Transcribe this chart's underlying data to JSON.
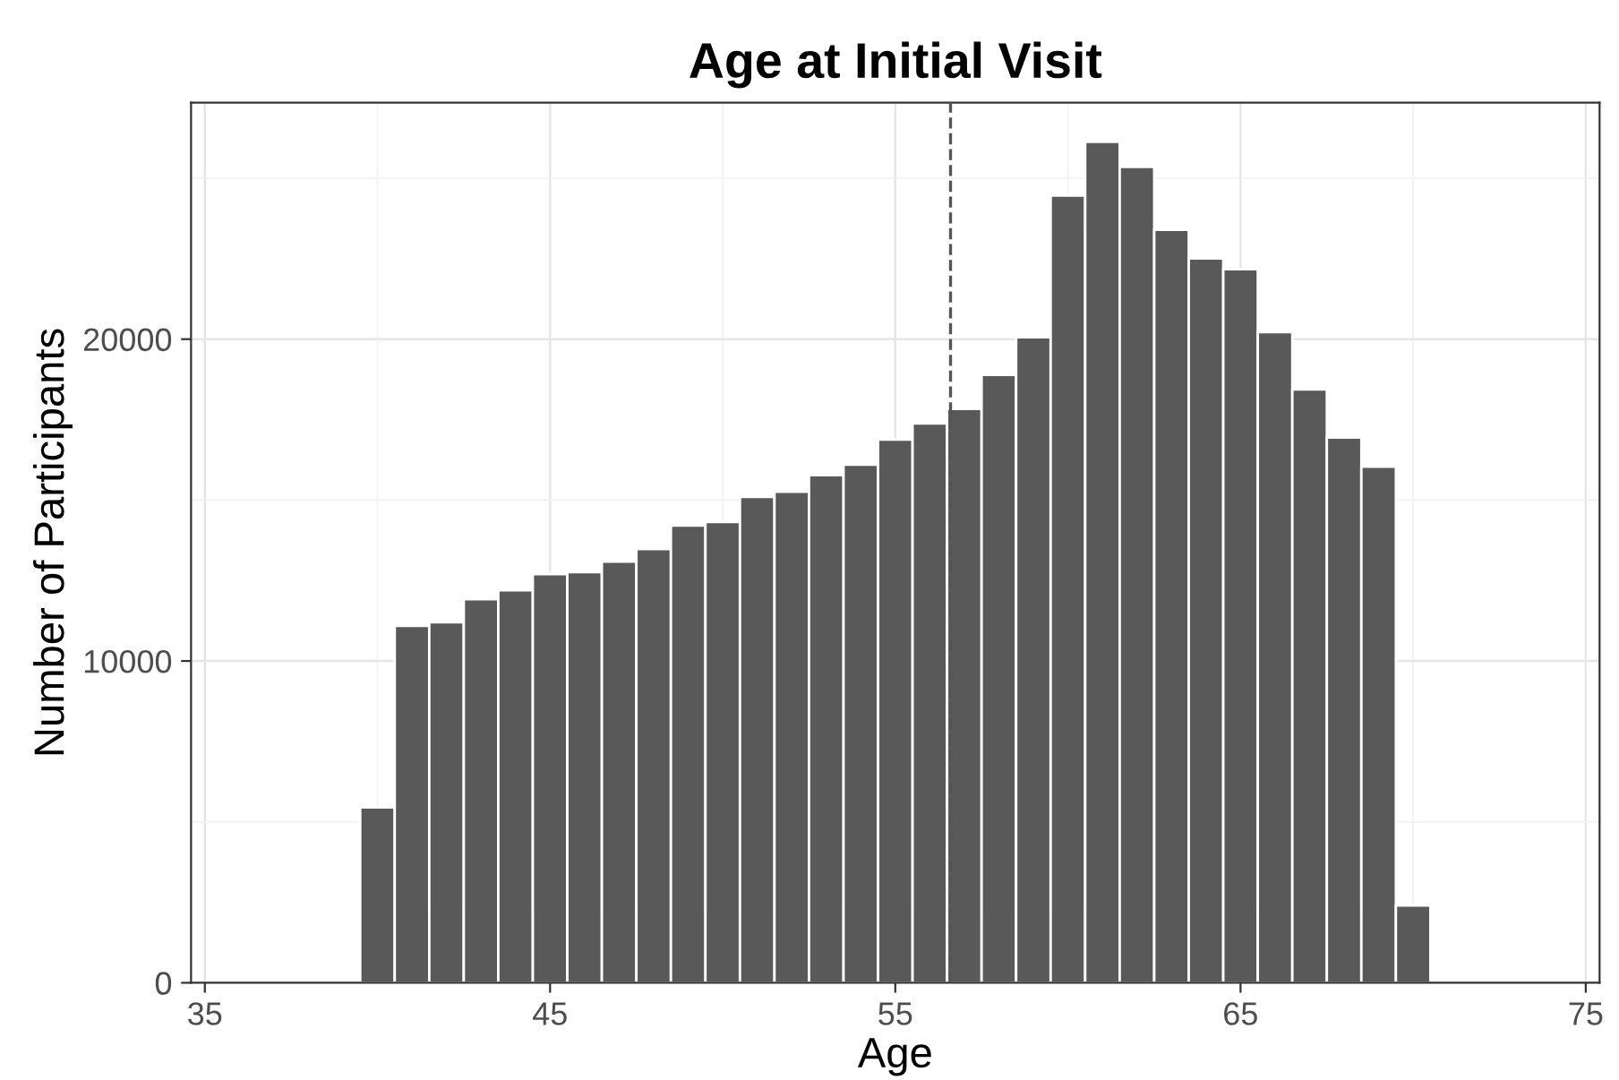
{
  "chart_data": {
    "type": "histogram",
    "title": "Age at Initial Visit",
    "xlabel": "Age",
    "ylabel": "Number of Participants",
    "bins": [
      39.5,
      40.5,
      41.5,
      42.5,
      43.5,
      44.5,
      45.5,
      46.5,
      47.5,
      48.5,
      49.5,
      50.5,
      51.5,
      52.5,
      53.5,
      54.5,
      55.5,
      56.5,
      57.5,
      58.5,
      59.5,
      60.5,
      61.5,
      62.5,
      63.5,
      64.5,
      65.5,
      66.5,
      67.5,
      68.5,
      69.5,
      70.5
    ],
    "values": [
      5450,
      11090,
      11200,
      11920,
      12200,
      12700,
      12760,
      13090,
      13480,
      14210,
      14320,
      15100,
      15260,
      15770,
      16100,
      16880,
      17380,
      17830,
      18890,
      20060,
      24460,
      26130,
      25350,
      23400,
      22510,
      22170,
      20220,
      18440,
      16940,
      16040,
      2400
    ],
    "color": "#595959",
    "xlim": [
      34.6,
      75.4
    ],
    "xticks": [
      35,
      45,
      55,
      65,
      75
    ],
    "ylim": [
      0,
      27350
    ],
    "yticks": [
      0,
      10000,
      20000
    ],
    "grid": true,
    "ref_lines": [
      {
        "axis": "x",
        "value": 56.6,
        "label": null,
        "color": "#555555",
        "line_style": "dashed"
      }
    ]
  }
}
